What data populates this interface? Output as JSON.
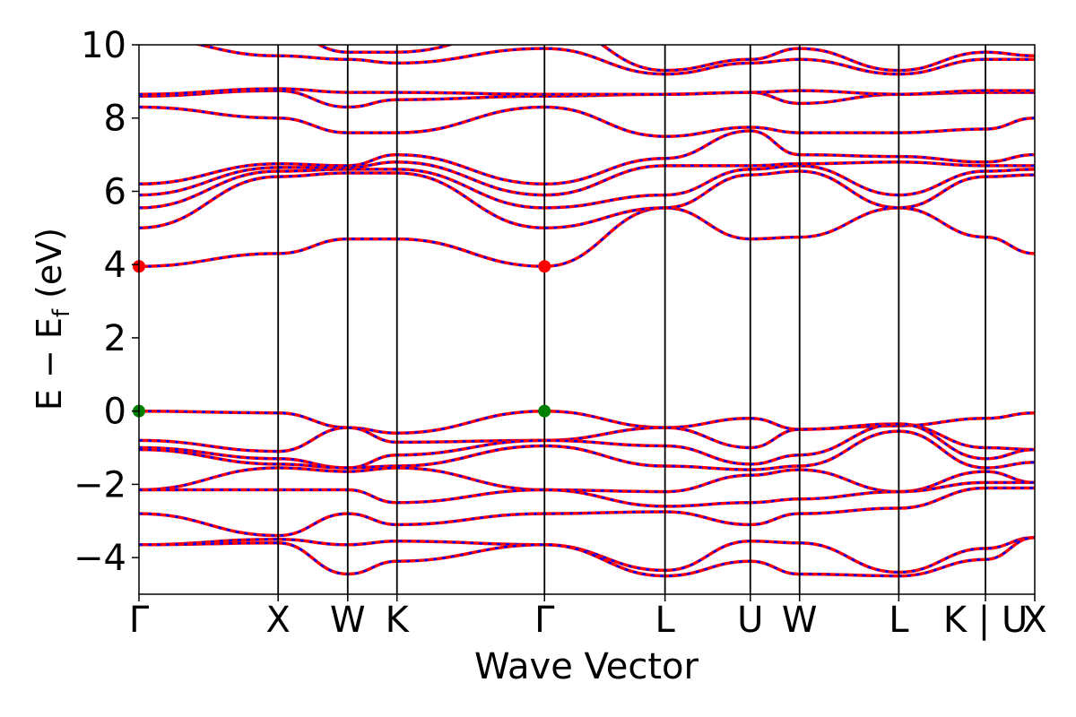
{
  "chart_data": {
    "type": "line",
    "title": "",
    "xlabel": "Wave Vector",
    "ylabel_parts": {
      "main": "E − E",
      "sub": "f",
      "unit": " (eV)"
    },
    "ylim": [
      -5,
      10
    ],
    "yticks": [
      -4,
      -2,
      0,
      2,
      4,
      6,
      8,
      10
    ],
    "ytick_labels": [
      "−4",
      "−2",
      "0",
      "2",
      "4",
      "6",
      "8",
      "10"
    ],
    "kpath": [
      0,
      1.0,
      1.5,
      1.854,
      2.914,
      3.78,
      4.393,
      4.747,
      5.46,
      6.083,
      6.437
    ],
    "kpath_labels": [
      "Γ",
      "X",
      "W",
      "K",
      "Γ",
      "L",
      "U",
      "W",
      "L",
      "K | U",
      "X"
    ],
    "grid": false,
    "legend": "none",
    "colors": {
      "band_solid": "#ff0000",
      "band_dashed": "#0000ff",
      "cbm_point": "#ff0000",
      "vbm_point": "#008000"
    },
    "band_extrema": {
      "cbm": [
        {
          "k": 0,
          "e": 3.95
        },
        {
          "k": 2.914,
          "e": 3.95
        }
      ],
      "vbm": [
        {
          "k": 0,
          "e": 0
        },
        {
          "k": 2.914,
          "e": 0
        }
      ]
    },
    "band_groups": [
      {
        "name": "valence",
        "energies": [
          [
            0.0,
            -0.05,
            -0.45,
            -0.6,
            0.0,
            -0.45,
            -0.2,
            -0.5,
            -0.4,
            -0.2,
            -0.05
          ],
          [
            -0.8,
            -1.1,
            -0.45,
            -0.85,
            -0.8,
            -0.45,
            -1.0,
            -0.5,
            -0.35,
            -1.0,
            -1.05
          ],
          [
            -1.0,
            -1.3,
            -1.55,
            -1.2,
            -0.8,
            -0.95,
            -1.45,
            -1.2,
            -0.35,
            -1.3,
            -1.05
          ],
          [
            -1.05,
            -1.45,
            -1.55,
            -1.5,
            -0.95,
            -1.5,
            -1.6,
            -1.5,
            -0.55,
            -1.55,
            -1.4
          ],
          [
            -2.15,
            -1.55,
            -1.65,
            -1.55,
            -2.15,
            -2.2,
            -1.75,
            -1.6,
            -2.2,
            -1.65,
            -1.95
          ],
          [
            -2.15,
            -2.15,
            -2.15,
            -2.5,
            -2.15,
            -2.6,
            -2.5,
            -2.4,
            -2.2,
            -1.95,
            -1.95
          ],
          [
            -2.8,
            -3.4,
            -2.8,
            -3.1,
            -2.8,
            -2.75,
            -3.1,
            -2.8,
            -2.65,
            -2.1,
            -2.1
          ],
          [
            -3.65,
            -3.5,
            -3.65,
            -3.55,
            -3.65,
            -4.35,
            -3.55,
            -3.6,
            -4.4,
            -3.75,
            -3.45
          ],
          [
            -3.65,
            -3.6,
            -4.45,
            -4.1,
            -3.65,
            -4.5,
            -4.1,
            -4.45,
            -4.5,
            -4.05,
            -3.45
          ]
        ]
      },
      {
        "name": "conduction",
        "energies": [
          [
            3.95,
            4.3,
            4.7,
            4.7,
            3.95,
            5.55,
            4.7,
            4.75,
            5.55,
            4.75,
            4.3
          ],
          [
            5.0,
            6.4,
            6.5,
            6.5,
            5.0,
            5.55,
            6.45,
            6.55,
            5.55,
            6.4,
            6.45
          ],
          [
            5.55,
            6.55,
            6.6,
            6.6,
            5.55,
            5.9,
            6.6,
            6.7,
            5.9,
            6.55,
            6.6
          ],
          [
            5.9,
            6.65,
            6.65,
            6.8,
            5.9,
            6.7,
            6.7,
            6.75,
            6.8,
            6.7,
            6.7
          ],
          [
            6.2,
            6.75,
            6.7,
            7.0,
            6.2,
            6.9,
            7.65,
            7.0,
            6.95,
            6.8,
            7.0
          ],
          [
            8.3,
            8.0,
            7.6,
            7.6,
            8.3,
            7.5,
            7.75,
            7.6,
            7.6,
            7.7,
            8.0
          ],
          [
            8.6,
            8.75,
            8.3,
            8.5,
            8.6,
            8.65,
            8.7,
            8.4,
            8.65,
            8.7,
            8.7
          ],
          [
            8.65,
            8.8,
            8.7,
            8.7,
            8.65,
            8.65,
            8.7,
            8.75,
            8.65,
            8.75,
            8.75
          ],
          [
            10.2,
            9.7,
            9.6,
            9.5,
            9.9,
            9.2,
            9.5,
            9.6,
            9.2,
            9.6,
            9.6
          ],
          [
            10.6,
            10.4,
            9.8,
            9.8,
            10.6,
            9.3,
            9.6,
            9.9,
            9.3,
            9.8,
            9.7
          ]
        ]
      }
    ]
  }
}
